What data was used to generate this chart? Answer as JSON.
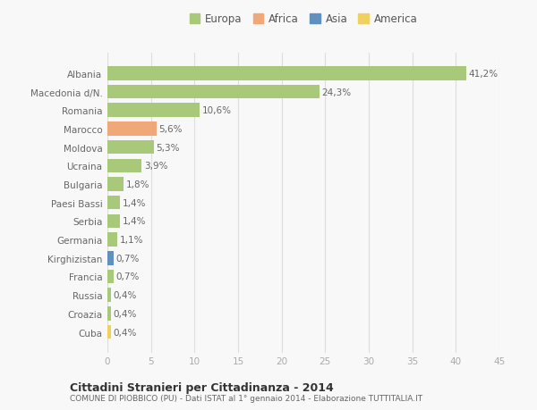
{
  "countries": [
    "Albania",
    "Macedonia d/N.",
    "Romania",
    "Marocco",
    "Moldova",
    "Ucraina",
    "Bulgaria",
    "Paesi Bassi",
    "Serbia",
    "Germania",
    "Kirghizistan",
    "Francia",
    "Russia",
    "Croazia",
    "Cuba"
  ],
  "values": [
    41.2,
    24.3,
    10.6,
    5.6,
    5.3,
    3.9,
    1.8,
    1.4,
    1.4,
    1.1,
    0.7,
    0.7,
    0.4,
    0.4,
    0.4
  ],
  "labels": [
    "41,2%",
    "24,3%",
    "10,6%",
    "5,6%",
    "5,3%",
    "3,9%",
    "1,8%",
    "1,4%",
    "1,4%",
    "1,1%",
    "0,7%",
    "0,7%",
    "0,4%",
    "0,4%",
    "0,4%"
  ],
  "bar_colors": [
    "#a8c87a",
    "#a8c87a",
    "#a8c87a",
    "#f0a878",
    "#a8c87a",
    "#a8c87a",
    "#a8c87a",
    "#a8c87a",
    "#a8c87a",
    "#a8c87a",
    "#6090c0",
    "#a8c87a",
    "#a8c87a",
    "#a8c87a",
    "#f0d060"
  ],
  "continents": [
    "Europa",
    "Africa",
    "Asia",
    "America"
  ],
  "legend_colors": [
    "#a8c87a",
    "#f0a878",
    "#6090c0",
    "#f0d060"
  ],
  "title": "Cittadini Stranieri per Cittadinanza - 2014",
  "subtitle": "COMUNE DI PIOBBICO (PU) - Dati ISTAT al 1° gennaio 2014 - Elaborazione TUTTITALIA.IT",
  "xlim": [
    0,
    45
  ],
  "xticks": [
    0,
    5,
    10,
    15,
    20,
    25,
    30,
    35,
    40,
    45
  ],
  "background_color": "#f8f8f8",
  "grid_color": "#dddddd"
}
